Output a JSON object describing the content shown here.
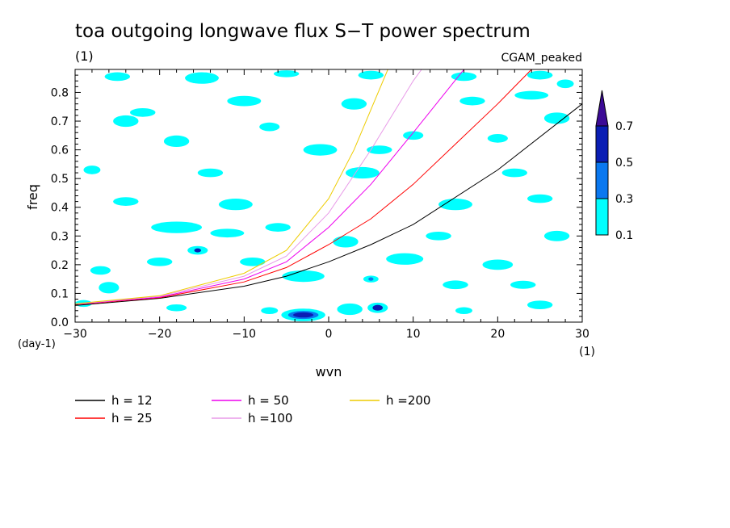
{
  "chart_data": {
    "type": "heatmap",
    "title": "toa outgoing longwave flux S−T power spectrum",
    "subtitle_left": "(1)",
    "subtitle_right": "CGAM_peaked",
    "xlabel": "wvn",
    "x_unit": "(1)",
    "ylabel": "freq",
    "y_unit": "(day-1)",
    "xlim": [
      -30,
      30
    ],
    "ylim": [
      0,
      0.88
    ],
    "x_ticks": [
      -30,
      -20,
      -10,
      0,
      10,
      20,
      30
    ],
    "y_ticks": [
      0.0,
      0.1,
      0.2,
      0.3,
      0.4,
      0.5,
      0.6,
      0.7,
      0.8
    ],
    "x_tick_labels": [
      "−30",
      "−20",
      "−10",
      "0",
      "10",
      "20",
      "30"
    ],
    "y_tick_labels": [
      "0.0",
      "0.1",
      "0.2",
      "0.3",
      "0.4",
      "0.5",
      "0.6",
      "0.7",
      "0.8"
    ],
    "colorbar": {
      "levels": [
        "0.1",
        "0.3",
        "0.5",
        "0.7"
      ],
      "colors": [
        "#00ffff",
        "#0a78f0",
        "#0a1eb4",
        "#3c0a96"
      ]
    },
    "dispersion_curves": [
      {
        "name": "h = 12",
        "color": "#000000",
        "x": [
          -30,
          -20,
          -10,
          -5,
          0,
          5,
          10,
          20,
          30
        ],
        "y": [
          0.058,
          0.083,
          0.125,
          0.16,
          0.21,
          0.27,
          0.34,
          0.53,
          0.76
        ]
      },
      {
        "name": "h = 25",
        "color": "#ff0000",
        "x": [
          -30,
          -20,
          -10,
          -5,
          0,
          5,
          10,
          15,
          20,
          24
        ],
        "y": [
          0.061,
          0.085,
          0.14,
          0.19,
          0.27,
          0.36,
          0.48,
          0.62,
          0.76,
          0.88
        ]
      },
      {
        "name": "h = 50",
        "color": "#ee00ee",
        "x": [
          -30,
          -20,
          -10,
          -5,
          0,
          5,
          10,
          16
        ],
        "y": [
          0.062,
          0.087,
          0.15,
          0.21,
          0.33,
          0.48,
          0.66,
          0.88
        ]
      },
      {
        "name": "h =100",
        "color": "#e89ae8",
        "x": [
          -30,
          -20,
          -10,
          -5,
          0,
          5,
          10,
          11
        ],
        "y": [
          0.063,
          0.09,
          0.16,
          0.23,
          0.38,
          0.6,
          0.84,
          0.88
        ]
      },
      {
        "name": "h =200",
        "color": "#eecc00",
        "x": [
          -30,
          -20,
          -10,
          -5,
          0,
          3,
          5,
          7
        ],
        "y": [
          0.064,
          0.092,
          0.17,
          0.25,
          0.43,
          0.6,
          0.74,
          0.88
        ]
      }
    ],
    "contour_blobs": [
      {
        "x": -3,
        "y": 0.025,
        "rx": 2.6,
        "ry": 0.022,
        "level": 0
      },
      {
        "x": -3,
        "y": 0.025,
        "rx": 1.8,
        "ry": 0.014,
        "level": 1
      },
      {
        "x": -3,
        "y": 0.025,
        "rx": 1.2,
        "ry": 0.009,
        "level": 2
      },
      {
        "x": 5.8,
        "y": 0.05,
        "rx": 1.2,
        "ry": 0.018,
        "level": 0
      },
      {
        "x": 5.8,
        "y": 0.05,
        "rx": 0.6,
        "ry": 0.01,
        "level": 2
      },
      {
        "x": 2.5,
        "y": 0.045,
        "rx": 1.5,
        "ry": 0.02,
        "level": 0
      },
      {
        "x": -15.5,
        "y": 0.25,
        "rx": 1.2,
        "ry": 0.015,
        "level": 0
      },
      {
        "x": -15.5,
        "y": 0.25,
        "rx": 0.4,
        "ry": 0.007,
        "level": 2
      },
      {
        "x": 5,
        "y": 0.15,
        "rx": 0.9,
        "ry": 0.012,
        "level": 0
      },
      {
        "x": 5,
        "y": 0.15,
        "rx": 0.3,
        "ry": 0.006,
        "level": 1
      },
      {
        "x": -3,
        "y": 0.16,
        "rx": 2.5,
        "ry": 0.02,
        "level": 0
      },
      {
        "x": -18,
        "y": 0.33,
        "rx": 3,
        "ry": 0.02,
        "level": 0
      },
      {
        "x": -12,
        "y": 0.31,
        "rx": 2,
        "ry": 0.015,
        "level": 0
      },
      {
        "x": 9,
        "y": 0.22,
        "rx": 2.2,
        "ry": 0.02,
        "level": 0
      },
      {
        "x": 20,
        "y": 0.2,
        "rx": 1.8,
        "ry": 0.018,
        "level": 0
      },
      {
        "x": 23,
        "y": 0.13,
        "rx": 1.5,
        "ry": 0.014,
        "level": 0
      },
      {
        "x": -26,
        "y": 0.12,
        "rx": 1.2,
        "ry": 0.02,
        "level": 0
      },
      {
        "x": -27,
        "y": 0.18,
        "rx": 1.2,
        "ry": 0.015,
        "level": 0
      },
      {
        "x": -29,
        "y": 0.065,
        "rx": 1,
        "ry": 0.012,
        "level": 0
      },
      {
        "x": -25,
        "y": 0.855,
        "rx": 1.5,
        "ry": 0.015,
        "level": 0
      },
      {
        "x": -15,
        "y": 0.85,
        "rx": 2,
        "ry": 0.02,
        "level": 0
      },
      {
        "x": -5,
        "y": 0.865,
        "rx": 1.5,
        "ry": 0.012,
        "level": 0
      },
      {
        "x": 5,
        "y": 0.86,
        "rx": 1.5,
        "ry": 0.015,
        "level": 0
      },
      {
        "x": 16,
        "y": 0.855,
        "rx": 1.5,
        "ry": 0.015,
        "level": 0
      },
      {
        "x": 25,
        "y": 0.86,
        "rx": 1.5,
        "ry": 0.015,
        "level": 0
      },
      {
        "x": 28,
        "y": 0.83,
        "rx": 1,
        "ry": 0.015,
        "level": 0
      },
      {
        "x": -22,
        "y": 0.73,
        "rx": 1.5,
        "ry": 0.015,
        "level": 0
      },
      {
        "x": -24,
        "y": 0.7,
        "rx": 1.5,
        "ry": 0.02,
        "level": 0
      },
      {
        "x": -10,
        "y": 0.77,
        "rx": 2,
        "ry": 0.018,
        "level": 0
      },
      {
        "x": 3,
        "y": 0.76,
        "rx": 1.5,
        "ry": 0.02,
        "level": 0
      },
      {
        "x": 17,
        "y": 0.77,
        "rx": 1.5,
        "ry": 0.015,
        "level": 0
      },
      {
        "x": 24,
        "y": 0.79,
        "rx": 2,
        "ry": 0.015,
        "level": 0
      },
      {
        "x": -18,
        "y": 0.63,
        "rx": 1.5,
        "ry": 0.02,
        "level": 0
      },
      {
        "x": -1,
        "y": 0.6,
        "rx": 2,
        "ry": 0.02,
        "level": 0
      },
      {
        "x": 6,
        "y": 0.6,
        "rx": 1.5,
        "ry": 0.015,
        "level": 0
      },
      {
        "x": 27,
        "y": 0.71,
        "rx": 1.5,
        "ry": 0.02,
        "level": 0
      },
      {
        "x": -28,
        "y": 0.53,
        "rx": 1,
        "ry": 0.015,
        "level": 0
      },
      {
        "x": -14,
        "y": 0.52,
        "rx": 1.5,
        "ry": 0.015,
        "level": 0
      },
      {
        "x": 4,
        "y": 0.52,
        "rx": 2,
        "ry": 0.02,
        "level": 0
      },
      {
        "x": 22,
        "y": 0.52,
        "rx": 1.5,
        "ry": 0.015,
        "level": 0
      },
      {
        "x": -24,
        "y": 0.42,
        "rx": 1.5,
        "ry": 0.015,
        "level": 0
      },
      {
        "x": -11,
        "y": 0.41,
        "rx": 2,
        "ry": 0.02,
        "level": 0
      },
      {
        "x": 15,
        "y": 0.41,
        "rx": 2,
        "ry": 0.02,
        "level": 0
      },
      {
        "x": 25,
        "y": 0.43,
        "rx": 1.5,
        "ry": 0.015,
        "level": 0
      },
      {
        "x": -6,
        "y": 0.33,
        "rx": 1.5,
        "ry": 0.015,
        "level": 0
      },
      {
        "x": 2,
        "y": 0.28,
        "rx": 1.5,
        "ry": 0.02,
        "level": 0
      },
      {
        "x": 13,
        "y": 0.3,
        "rx": 1.5,
        "ry": 0.015,
        "level": 0
      },
      {
        "x": 27,
        "y": 0.3,
        "rx": 1.5,
        "ry": 0.018,
        "level": 0
      },
      {
        "x": -20,
        "y": 0.21,
        "rx": 1.5,
        "ry": 0.015,
        "level": 0
      },
      {
        "x": -9,
        "y": 0.21,
        "rx": 1.5,
        "ry": 0.015,
        "level": 0
      },
      {
        "x": 15,
        "y": 0.13,
        "rx": 1.5,
        "ry": 0.015,
        "level": 0
      },
      {
        "x": 25,
        "y": 0.06,
        "rx": 1.5,
        "ry": 0.015,
        "level": 0
      },
      {
        "x": -18,
        "y": 0.05,
        "rx": 1.2,
        "ry": 0.012,
        "level": 0
      },
      {
        "x": 16,
        "y": 0.04,
        "rx": 1,
        "ry": 0.012,
        "level": 0
      },
      {
        "x": -7,
        "y": 0.04,
        "rx": 1,
        "ry": 0.012,
        "level": 0
      },
      {
        "x": 10,
        "y": 0.65,
        "rx": 1.2,
        "ry": 0.015,
        "level": 0
      },
      {
        "x": -7,
        "y": 0.68,
        "rx": 1.2,
        "ry": 0.015,
        "level": 0
      },
      {
        "x": 20,
        "y": 0.64,
        "rx": 1.2,
        "ry": 0.015,
        "level": 0
      }
    ]
  }
}
